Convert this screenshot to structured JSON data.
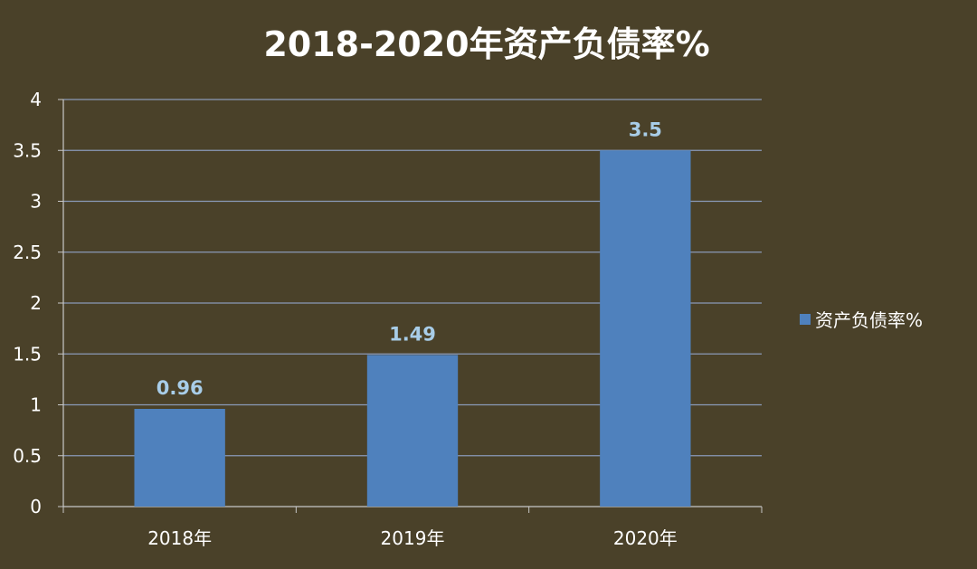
{
  "chart_data": {
    "type": "bar",
    "title": "2018-2020年资产负债率%",
    "categories": [
      "2018年",
      "2019年",
      "2020年"
    ],
    "series": [
      {
        "name": "资产负债率%",
        "values": [
          0.96,
          1.49,
          3.5
        ],
        "color": "#4f81bd"
      }
    ],
    "data_labels": [
      "0.96",
      "1.49",
      "3.5"
    ],
    "y_ticks": [
      "0",
      "0.5",
      "1",
      "1.5",
      "2",
      "2.5",
      "3",
      "3.5",
      "4"
    ],
    "ylim": [
      0,
      4
    ],
    "xlabel": "",
    "ylabel": "",
    "grid": true,
    "legend_position": "right",
    "colors": {
      "background": "#4a4129",
      "gridline": "#8a9ab8",
      "axis": "#c8c8c8",
      "text": "#ffffff",
      "data_label": "#a8cde8"
    }
  }
}
